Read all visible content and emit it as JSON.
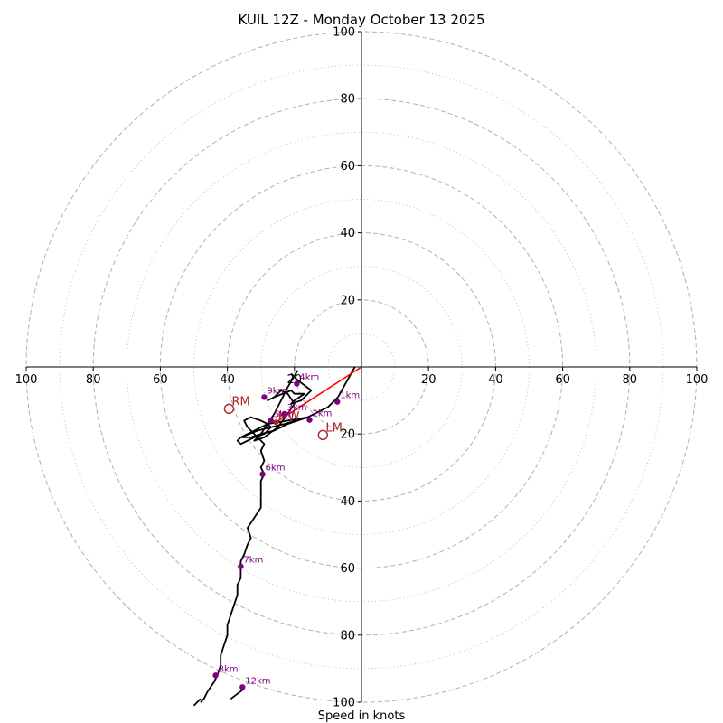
{
  "chart_data": {
    "type": "hodograph",
    "title": "KUIL 12Z - Monday October 13 2025",
    "xlabel": "Speed in knots",
    "range": [
      -100,
      100
    ],
    "rings_major": [
      20,
      40,
      60,
      80,
      100
    ],
    "rings_minor": [
      10,
      30,
      50,
      70,
      90
    ],
    "x_ticks": [
      "100",
      "80",
      "60",
      "40",
      "20",
      "20",
      "40",
      "60",
      "80",
      "100"
    ],
    "x_tick_values": [
      -100,
      -80,
      -60,
      -40,
      -20,
      20,
      40,
      60,
      80,
      100
    ],
    "y_ticks": [
      "100",
      "80",
      "60",
      "40",
      "20",
      "20",
      "40",
      "60",
      "80",
      "100"
    ],
    "y_tick_values": [
      100,
      80,
      60,
      40,
      20,
      -20,
      -40,
      -60,
      -80,
      -100
    ],
    "trace": [
      [
        -2,
        0
      ],
      [
        -7,
        -9
      ],
      [
        -8,
        -10
      ],
      [
        -9,
        -11
      ],
      [
        -10,
        -12
      ],
      [
        -12,
        -13
      ],
      [
        -16,
        -15
      ],
      [
        -22,
        -17
      ],
      [
        -26,
        -19
      ],
      [
        -30,
        -20
      ],
      [
        -33,
        -21
      ],
      [
        -36,
        -21
      ],
      [
        -31,
        -19
      ],
      [
        -27,
        -18
      ],
      [
        -23,
        -17
      ],
      [
        -16,
        -15
      ],
      [
        -22,
        -16
      ],
      [
        -28,
        -17
      ],
      [
        -32,
        -19
      ],
      [
        -36,
        -21
      ],
      [
        -37,
        -22
      ],
      [
        -36,
        -23
      ],
      [
        -32,
        -21
      ],
      [
        -29,
        -20
      ],
      [
        -27,
        -18
      ],
      [
        -28,
        -17
      ],
      [
        -30,
        -16
      ],
      [
        -33,
        -15
      ],
      [
        -35,
        -16
      ],
      [
        -34,
        -18
      ],
      [
        -31,
        -21
      ],
      [
        -29,
        -23
      ],
      [
        -30,
        -25
      ],
      [
        -29,
        -28
      ],
      [
        -30,
        -30
      ],
      [
        -29,
        -32
      ],
      [
        -30,
        -34
      ],
      [
        -30,
        -37
      ],
      [
        -30,
        -40
      ],
      [
        -30,
        -42
      ],
      [
        -32,
        -45
      ],
      [
        -34,
        -48
      ],
      [
        -33,
        -51
      ],
      [
        -34,
        -53
      ],
      [
        -35,
        -56
      ],
      [
        -36,
        -58
      ],
      [
        -36,
        -61
      ],
      [
        -36,
        -63
      ],
      [
        -37,
        -65
      ],
      [
        -37,
        -68
      ],
      [
        -38,
        -71
      ],
      [
        -39,
        -74
      ],
      [
        -40,
        -77
      ],
      [
        -40,
        -80
      ],
      [
        -41,
        -83
      ],
      [
        -42,
        -86
      ],
      [
        -42,
        -89
      ],
      [
        -43,
        -92
      ],
      [
        -44,
        -94
      ],
      [
        -46,
        -97
      ],
      [
        -47,
        -99
      ],
      [
        -48,
        -100
      ]
    ],
    "upper_trace": [
      [
        -19,
        -1
      ],
      [
        -22,
        -6
      ],
      [
        -24,
        -10
      ],
      [
        -26,
        -14
      ],
      [
        -28,
        -17
      ],
      [
        -30,
        -20
      ],
      [
        -32,
        -22
      ],
      [
        -29,
        -21
      ],
      [
        -25,
        -18
      ],
      [
        -22,
        -14
      ],
      [
        -20,
        -11
      ],
      [
        -22,
        -8
      ],
      [
        -24,
        -7
      ],
      [
        -26,
        -9
      ],
      [
        -28,
        -10
      ],
      [
        -26,
        -9
      ],
      [
        -21,
        -7
      ],
      [
        -20,
        -8
      ],
      [
        -17,
        -8
      ],
      [
        -20,
        -10
      ],
      [
        -21,
        -11
      ],
      [
        -18,
        -10
      ],
      [
        -15,
        -7
      ],
      [
        -19,
        -4
      ],
      [
        -21,
        -2
      ]
    ],
    "tail_segment": [
      [
        -48,
        -99
      ],
      [
        -50,
        -101
      ]
    ],
    "tail_segment2": [
      [
        -35,
        -96
      ],
      [
        -39,
        -99
      ]
    ],
    "height_labels": [
      {
        "label": "1km",
        "u": -7.2,
        "v": -10.4
      },
      {
        "label": "2km",
        "u": -15.5,
        "v": -15.8
      },
      {
        "label": "3km",
        "u": -23,
        "v": -14
      },
      {
        "label": "4km",
        "u": -19.3,
        "v": -5
      },
      {
        "label": "5km",
        "u": -27,
        "v": -16
      },
      {
        "label": "6km",
        "u": -29.5,
        "v": -32
      },
      {
        "label": "7km",
        "u": -36,
        "v": -59.5
      },
      {
        "label": "9km",
        "u": -29,
        "v": -9
      },
      {
        "label": "8km",
        "u": -43.5,
        "v": -92
      },
      {
        "label": "12km",
        "u": -35.5,
        "v": -95.5
      }
    ],
    "storm_motion": [
      {
        "label": "RM",
        "u": -39.5,
        "v": -12.5
      },
      {
        "label": "LM",
        "u": -11.5,
        "v": -20.3
      },
      {
        "label": "MW",
        "u": -25.5,
        "v": -16.5
      }
    ],
    "shear_vector": {
      "from": [
        0,
        0
      ],
      "to": [
        -25.5,
        -16.5
      ]
    },
    "colors": {
      "ring": "#b0b0b0",
      "trace": "#000000",
      "marker": "#800080",
      "motion": "#b22222",
      "shear": "#ff0000"
    }
  }
}
